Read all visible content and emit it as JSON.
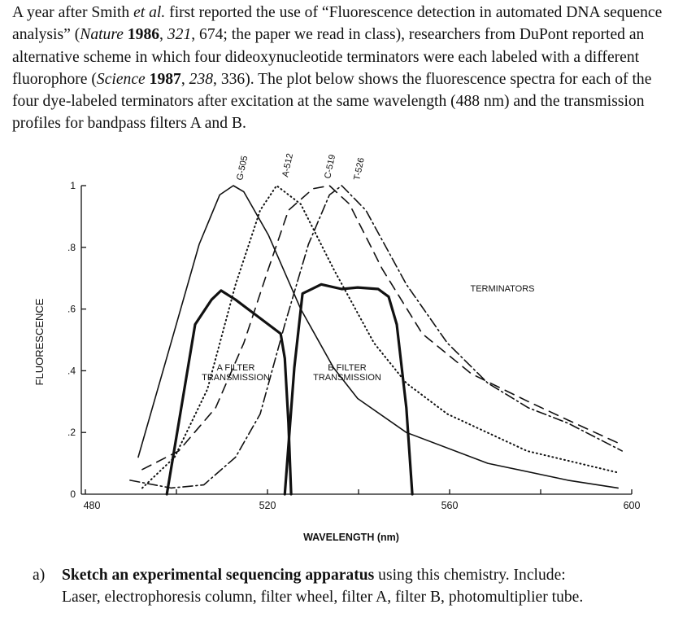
{
  "intro": [
    {
      "t": "A year after Smith ",
      "s": ""
    },
    {
      "t": "et al.",
      "s": "i"
    },
    {
      "t": " first reported the use of “Fluorescence detection in automated DNA sequence analysis” (",
      "s": ""
    },
    {
      "t": "Nature",
      "s": "i"
    },
    {
      "t": " ",
      "s": ""
    },
    {
      "t": "1986",
      "s": "b"
    },
    {
      "t": ", ",
      "s": ""
    },
    {
      "t": "321",
      "s": "i"
    },
    {
      "t": ", 674; the paper we read in class), researchers from DuPont reported an alternative scheme in which four dideoxynucleotide terminators were each labeled with a different fluorophore (",
      "s": ""
    },
    {
      "t": "Science",
      "s": "i"
    },
    {
      "t": " ",
      "s": ""
    },
    {
      "t": "1987",
      "s": "b"
    },
    {
      "t": ", ",
      "s": ""
    },
    {
      "t": "238",
      "s": "i"
    },
    {
      "t": ", 336). The plot below shows the fluorescence spectra for each of the four dye-labeled terminators after excitation at the same wavelength (488 nm) and the transmission profiles for bandpass filters A and B.",
      "s": ""
    }
  ],
  "chart_data": {
    "type": "line",
    "xlabel": "WAVELENGTH (nm)",
    "ylabel": "FLUORESCENCE",
    "xlim": [
      480,
      600
    ],
    "ylim": [
      0,
      1
    ],
    "xticks": [
      "480",
      "520",
      "560",
      "600"
    ],
    "yticks": [
      ".2",
      ".4",
      ".6",
      ".8",
      "1"
    ],
    "yzero": "0",
    "grid": false,
    "annotations": {
      "terminators": "TERMINATORS",
      "a_filter": [
        "A FILTER",
        "TRANSMISSION"
      ],
      "b_filter": [
        "B FILTER",
        "TRANSMISSION"
      ]
    },
    "series": [
      {
        "name": "G-505",
        "style": "solid",
        "x": [
          491.6,
          498.8,
          505,
          509.5,
          512.5,
          514.8,
          520.2,
          527.3,
          534.5,
          539.8,
          550.5,
          568.4,
          586,
          597
        ],
        "y": [
          0.12,
          0.49,
          0.81,
          0.97,
          1.0,
          0.98,
          0.84,
          0.6,
          0.41,
          0.31,
          0.2,
          0.1,
          0.045,
          0.02
        ]
      },
      {
        "name": "A-512",
        "style": "dotted",
        "x": [
          492.5,
          499.6,
          506.8,
          513,
          518.4,
          522,
          527.3,
          534.5,
          543.4,
          550.5,
          559.5,
          577,
          597
        ],
        "y": [
          0.02,
          0.12,
          0.34,
          0.68,
          0.92,
          1.0,
          0.94,
          0.73,
          0.49,
          0.36,
          0.26,
          0.14,
          0.07
        ]
      },
      {
        "name": "C-519",
        "style": "dashed",
        "x": [
          492.5,
          500.5,
          508.6,
          514.8,
          520.2,
          524.6,
          530,
          533.6,
          538,
          545.2,
          554,
          564.8,
          577.3,
          586,
          597.9
        ],
        "y": [
          0.08,
          0.14,
          0.28,
          0.49,
          0.73,
          0.92,
          0.99,
          1.0,
          0.94,
          0.73,
          0.52,
          0.39,
          0.3,
          0.24,
          0.16
        ]
      },
      {
        "name": "T-526",
        "style": "dashdot",
        "x": [
          489.8,
          498.8,
          506,
          513,
          518.4,
          523.8,
          529,
          533.6,
          536.3,
          541.6,
          550.5,
          559.5,
          568.4,
          577.3,
          586,
          597.9
        ],
        "y": [
          0.045,
          0.02,
          0.03,
          0.12,
          0.26,
          0.55,
          0.81,
          0.97,
          1.0,
          0.92,
          0.68,
          0.49,
          0.36,
          0.28,
          0.23,
          0.14
        ]
      },
      {
        "name": "A FILTER TRANSMISSION",
        "style": "thick",
        "x": [
          497.9,
          500.5,
          504.1,
          507.7,
          509.8,
          513,
          516.6,
          520.2,
          522.9,
          523.8,
          524.6,
          525.2
        ],
        "y": [
          0,
          0.23,
          0.55,
          0.63,
          0.66,
          0.63,
          0.59,
          0.55,
          0.52,
          0.44,
          0.23,
          0
        ]
      },
      {
        "name": "B FILTER TRANSMISSION",
        "style": "thick",
        "x": [
          523.8,
          525.9,
          527.7,
          531.8,
          536.3,
          539.8,
          544.3,
          546.6,
          548.4,
          550.5,
          551.8
        ],
        "y": [
          0,
          0.41,
          0.65,
          0.68,
          0.665,
          0.67,
          0.665,
          0.64,
          0.55,
          0.28,
          0
        ]
      }
    ]
  },
  "question": {
    "label": "a)",
    "bold": "Sketch an experimental sequencing apparatus",
    "rest1": " using this chemistry. Include:",
    "rest2": "Laser, electrophoresis column, filter wheel, filter A, filter B, photomultiplier tube."
  }
}
